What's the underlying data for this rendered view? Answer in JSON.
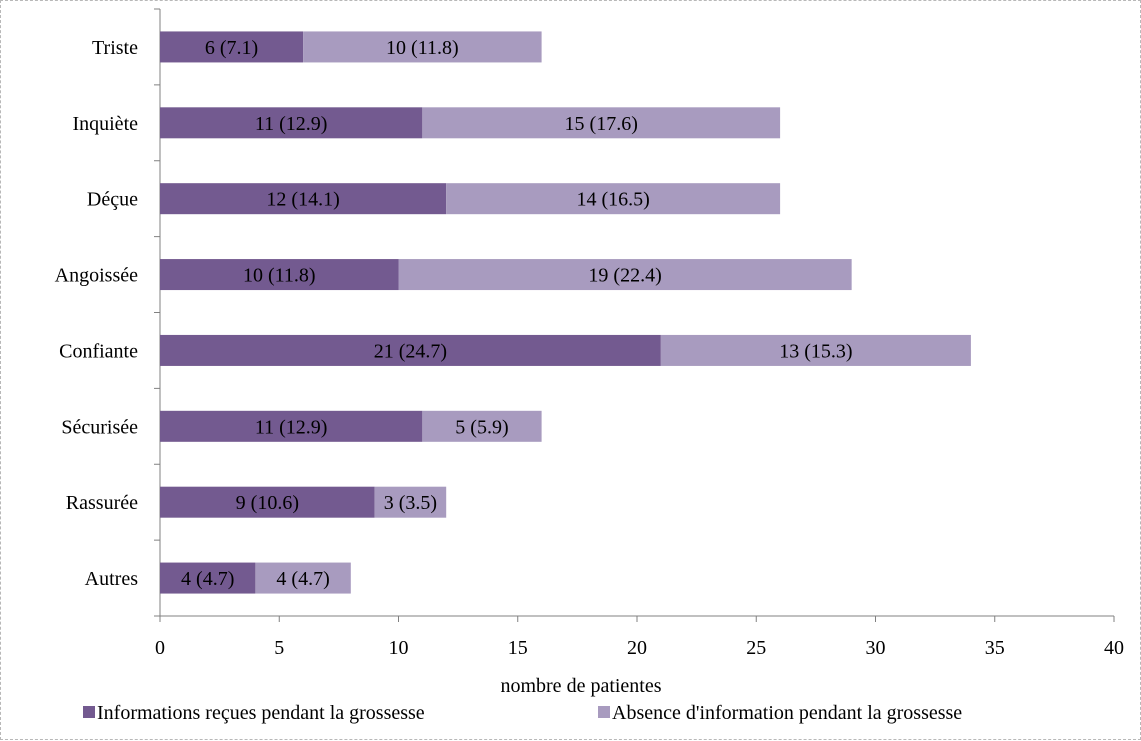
{
  "chart_data": {
    "type": "bar",
    "orientation": "horizontal",
    "stacked": true,
    "categories": [
      "Triste",
      "Inquiète",
      "Déçue",
      "Angoissée",
      "Confiante",
      "Sécurisée",
      "Rassurée",
      "Autres"
    ],
    "series": [
      {
        "name": "Informations reçues pendant la grossesse",
        "color": "#735a90",
        "values": [
          6,
          11,
          12,
          10,
          21,
          11,
          9,
          4
        ],
        "labels": [
          "6 (7.1)",
          "11 (12.9)",
          "12 (14.1)",
          "10 (11.8)",
          "21 (24.7)",
          "11 (12.9)",
          "9 (10.6)",
          "4 (4.7)"
        ]
      },
      {
        "name": "Absence d'information pendant la grossesse",
        "color": "#a89bbf",
        "values": [
          10,
          15,
          14,
          19,
          13,
          5,
          3,
          4
        ],
        "labels": [
          "10 (11.8)",
          "15 (17.6)",
          "14 (16.5)",
          "19 (22.4)",
          "13 (15.3)",
          "5 (5.9)",
          "3 (3.5)",
          "4 (4.7)"
        ]
      }
    ],
    "xlabel": "nombre de patientes",
    "ylabel": "",
    "xlim": [
      0,
      40
    ],
    "xticks": [
      "0",
      "5",
      "10",
      "15",
      "20",
      "25",
      "30",
      "35",
      "40"
    ],
    "grid": false,
    "legend_position": "bottom"
  }
}
